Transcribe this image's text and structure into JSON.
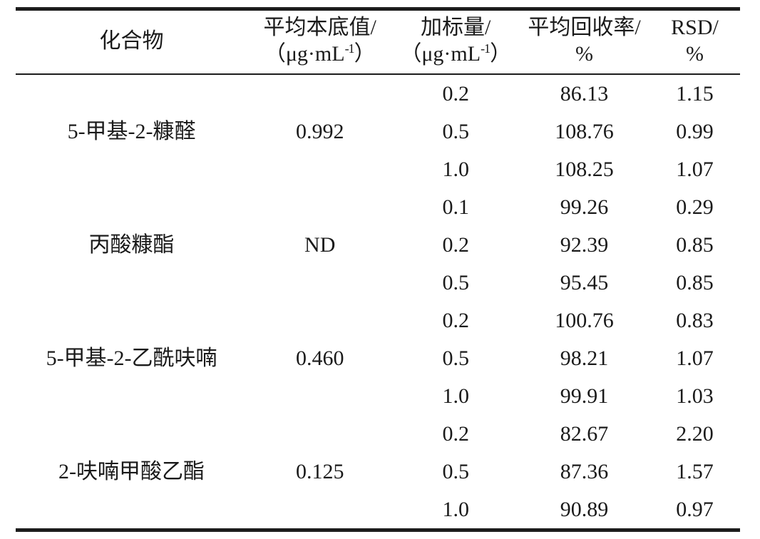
{
  "table": {
    "columns": [
      {
        "label": "化合物"
      },
      {
        "label": "平均本底值/",
        "unit_prefix": "（μg·mL",
        "unit_sup": "-1",
        "unit_suffix": "）"
      },
      {
        "label": "加标量/",
        "unit_prefix": "（μg·mL",
        "unit_sup": "-1",
        "unit_suffix": "）"
      },
      {
        "label": "平均回收率/",
        "unit": "%"
      },
      {
        "label": "RSD/",
        "unit": "%"
      }
    ],
    "groups": [
      {
        "compound": "5-甲基-2-糠醛",
        "background": "0.992",
        "rows": [
          {
            "spike": "0.2",
            "recovery": "86.13",
            "rsd": "1.15"
          },
          {
            "spike": "0.5",
            "recovery": "108.76",
            "rsd": "0.99"
          },
          {
            "spike": "1.0",
            "recovery": "108.25",
            "rsd": "1.07"
          }
        ]
      },
      {
        "compound": "丙酸糠酯",
        "background": "ND",
        "rows": [
          {
            "spike": "0.1",
            "recovery": "99.26",
            "rsd": "0.29"
          },
          {
            "spike": "0.2",
            "recovery": "92.39",
            "rsd": "0.85"
          },
          {
            "spike": "0.5",
            "recovery": "95.45",
            "rsd": "0.85"
          }
        ]
      },
      {
        "compound": "5-甲基-2-乙酰呋喃",
        "background": "0.460",
        "rows": [
          {
            "spike": "0.2",
            "recovery": "100.76",
            "rsd": "0.83"
          },
          {
            "spike": "0.5",
            "recovery": "98.21",
            "rsd": "1.07"
          },
          {
            "spike": "1.0",
            "recovery": "99.91",
            "rsd": "1.03"
          }
        ]
      },
      {
        "compound": "2-呋喃甲酸乙酯",
        "background": "0.125",
        "rows": [
          {
            "spike": "0.2",
            "recovery": "82.67",
            "rsd": "2.20"
          },
          {
            "spike": "0.5",
            "recovery": "87.36",
            "rsd": "1.57"
          },
          {
            "spike": "1.0",
            "recovery": "90.89",
            "rsd": "0.97"
          }
        ]
      }
    ]
  }
}
